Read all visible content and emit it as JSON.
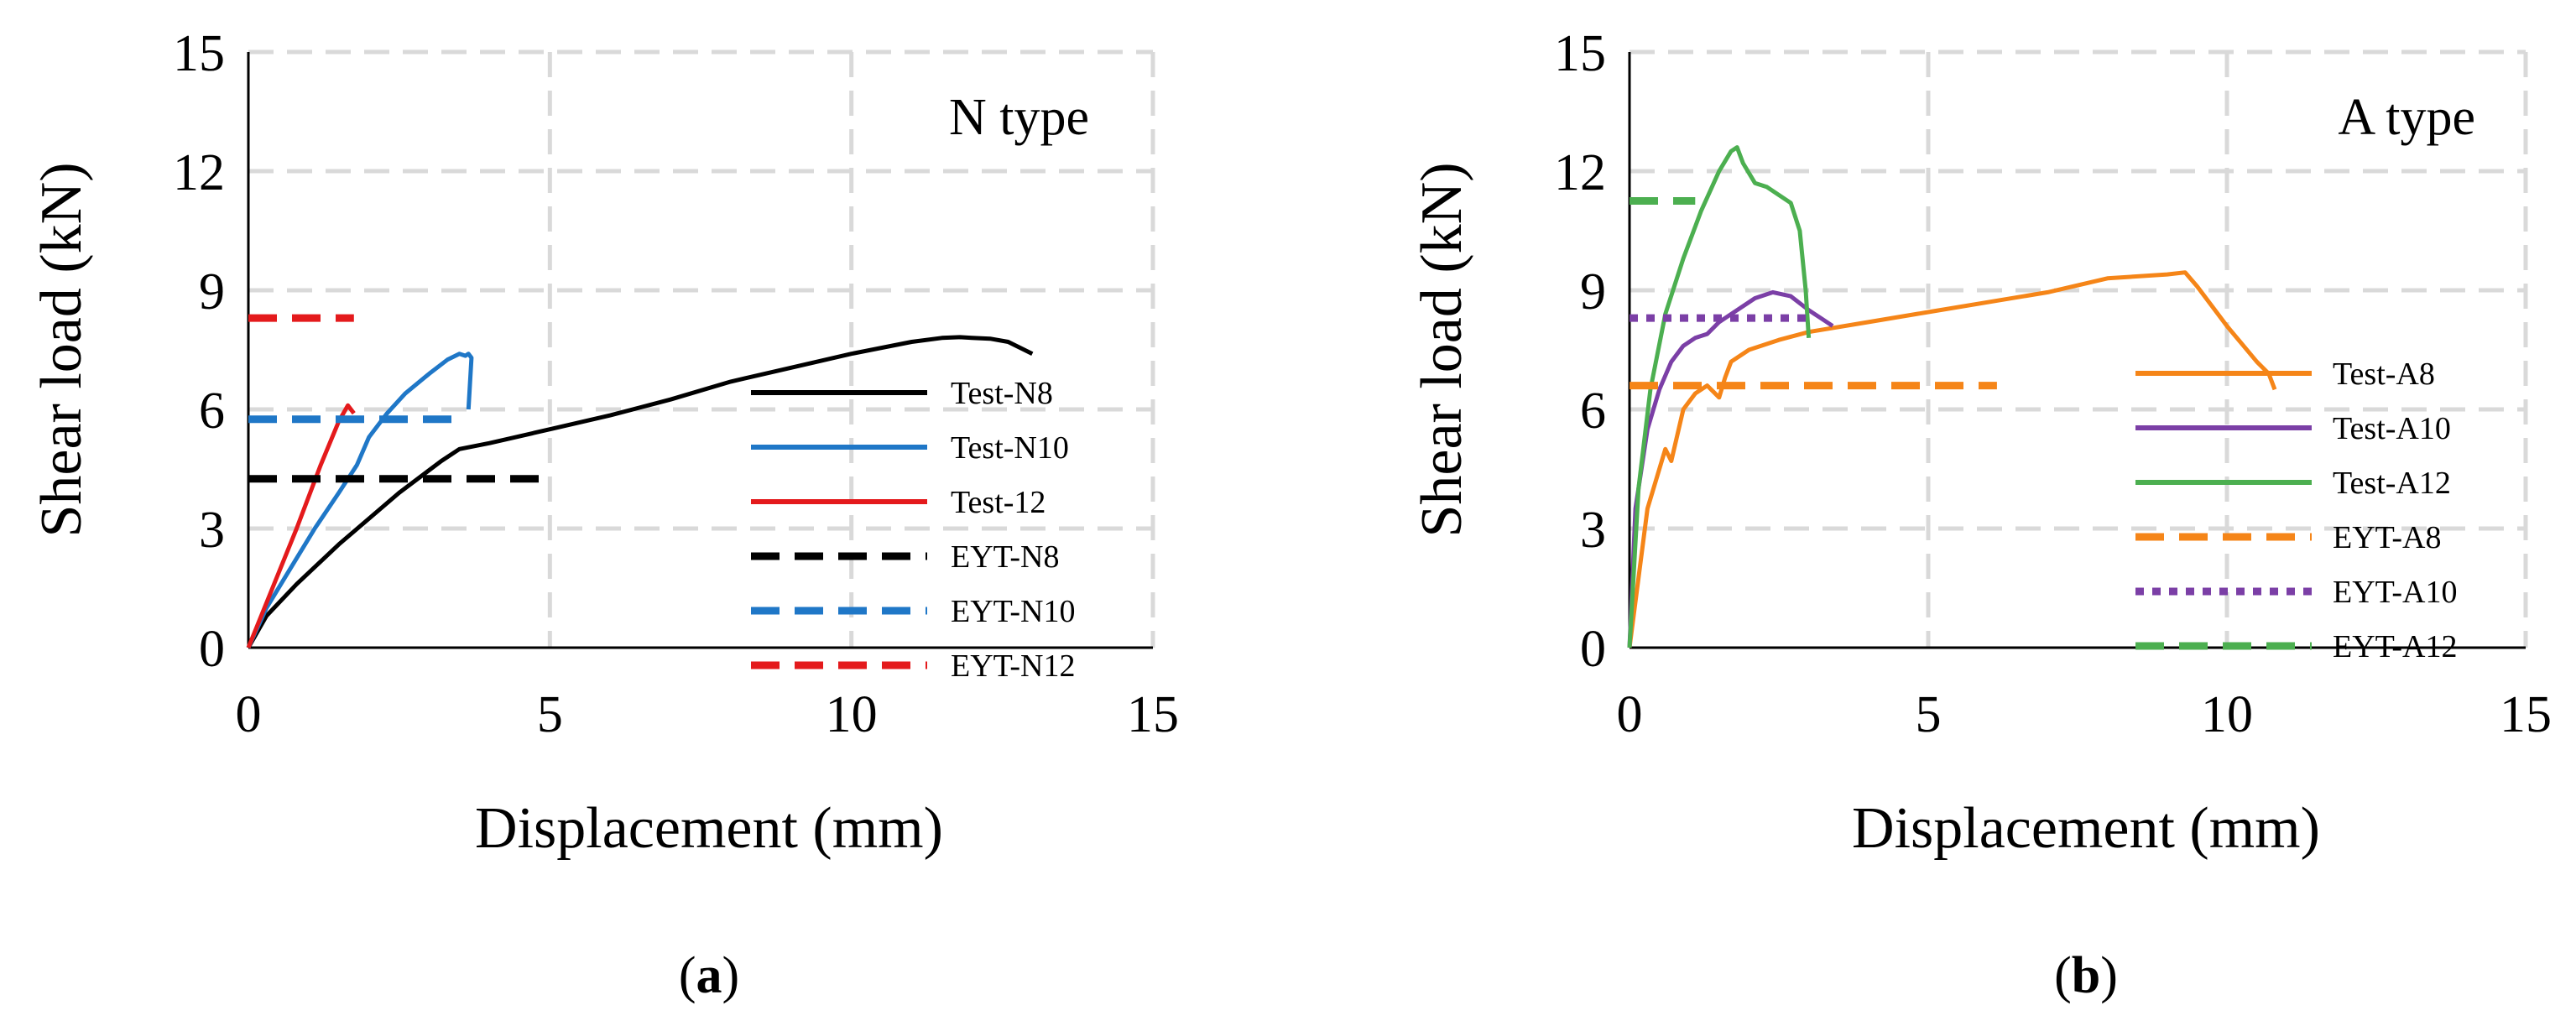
{
  "chart_data": [
    {
      "type": "line",
      "panel": "(a)",
      "caption_letter": "a",
      "title": "N type",
      "xlabel": "Displacement (mm)",
      "ylabel": "Shear load (kN)",
      "xlim": [
        0,
        15
      ],
      "ylim": [
        0,
        15
      ],
      "xticks": [
        0,
        5,
        10,
        15
      ],
      "yticks": [
        0,
        3,
        6,
        9,
        12,
        15
      ],
      "xtick_labels": [
        "0",
        "5",
        "10",
        "15"
      ],
      "ytick_labels": [
        "0",
        "3",
        "6",
        "9",
        "12",
        "15"
      ],
      "grid": true,
      "legend_position": "lower-right",
      "series": [
        {
          "name": "Test-N8",
          "color": "#000000",
          "style": "solid",
          "x": [
            0,
            0.3,
            0.8,
            1.5,
            2.5,
            3.2,
            3.5,
            4.0,
            5.0,
            6.0,
            7.0,
            8.0,
            9.0,
            10.0,
            11.0,
            11.5,
            11.8,
            12.0,
            12.3,
            12.6,
            12.8,
            13.0
          ],
          "y": [
            0,
            0.8,
            1.6,
            2.6,
            3.9,
            4.7,
            5.0,
            5.15,
            5.5,
            5.85,
            6.25,
            6.7,
            7.05,
            7.4,
            7.7,
            7.8,
            7.82,
            7.8,
            7.78,
            7.7,
            7.55,
            7.4
          ]
        },
        {
          "name": "Test-N10",
          "color": "#1F77C7",
          "style": "solid",
          "x": [
            0,
            0.3,
            0.7,
            1.1,
            1.5,
            1.8,
            2.0,
            2.3,
            2.6,
            3.0,
            3.3,
            3.5,
            3.6,
            3.65,
            3.7,
            3.65
          ],
          "y": [
            0,
            1.0,
            2.0,
            3.0,
            3.9,
            4.6,
            5.3,
            5.9,
            6.4,
            6.9,
            7.25,
            7.4,
            7.35,
            7.4,
            7.3,
            6.0
          ]
        },
        {
          "name": "Test-12",
          "color": "#E41A1C",
          "style": "solid",
          "x": [
            0,
            0.4,
            0.8,
            1.2,
            1.5,
            1.65,
            1.75
          ],
          "y": [
            0,
            1.5,
            3.0,
            4.6,
            5.7,
            6.1,
            5.9
          ]
        },
        {
          "name": "EYT-N8",
          "color": "#000000",
          "style": "dashed",
          "x": [
            0,
            4.85
          ],
          "y": [
            4.25,
            4.25
          ]
        },
        {
          "name": "EYT-N10",
          "color": "#1F77C7",
          "style": "dashed",
          "x": [
            0,
            3.6
          ],
          "y": [
            5.75,
            5.75
          ]
        },
        {
          "name": "EYT-N12",
          "color": "#E41A1C",
          "style": "dashed",
          "x": [
            0,
            1.75
          ],
          "y": [
            8.3,
            8.3
          ]
        }
      ]
    },
    {
      "type": "line",
      "panel": "(b)",
      "caption_letter": "b",
      "title": "A type",
      "xlabel": "Displacement (mm)",
      "ylabel": "Shear load (kN)",
      "xlim": [
        0,
        15
      ],
      "ylim": [
        0,
        15
      ],
      "xticks": [
        0,
        5,
        10,
        15
      ],
      "yticks": [
        0,
        3,
        6,
        9,
        12,
        15
      ],
      "xtick_labels": [
        "0",
        "5",
        "10",
        "15"
      ],
      "ytick_labels": [
        "0",
        "3",
        "6",
        "9",
        "12",
        "15"
      ],
      "grid": true,
      "legend_position": "right",
      "series": [
        {
          "name": "Test-A8",
          "color": "#F58518",
          "style": "solid",
          "x": [
            0,
            0.3,
            0.5,
            0.6,
            0.7,
            0.9,
            1.1,
            1.3,
            1.5,
            1.6,
            1.7,
            2.0,
            2.5,
            3.0,
            4.0,
            5.0,
            6.0,
            7.0,
            8.0,
            9.0,
            9.3,
            9.5,
            10.0,
            10.5,
            10.7,
            10.8
          ],
          "y": [
            0,
            3.5,
            4.5,
            5.0,
            4.7,
            6.0,
            6.4,
            6.6,
            6.3,
            6.8,
            7.2,
            7.5,
            7.75,
            7.95,
            8.2,
            8.45,
            8.7,
            8.95,
            9.3,
            9.4,
            9.45,
            9.1,
            8.1,
            7.2,
            6.9,
            6.5
          ]
        },
        {
          "name": "Test-A10",
          "color": "#7B3FA6",
          "style": "solid",
          "x": [
            0,
            0.1,
            0.3,
            0.5,
            0.7,
            0.9,
            1.1,
            1.3,
            1.5,
            1.8,
            2.1,
            2.4,
            2.7,
            3.0,
            3.2,
            3.4
          ],
          "y": [
            0,
            3.5,
            5.5,
            6.5,
            7.2,
            7.6,
            7.8,
            7.9,
            8.2,
            8.5,
            8.8,
            8.95,
            8.85,
            8.5,
            8.3,
            8.1
          ]
        },
        {
          "name": "Test-A12",
          "color": "#4CAF50",
          "style": "solid",
          "x": [
            0,
            0.15,
            0.35,
            0.6,
            0.9,
            1.2,
            1.5,
            1.7,
            1.8,
            1.9,
            2.1,
            2.3,
            2.5,
            2.7,
            2.85,
            2.95,
            3.0
          ],
          "y": [
            0,
            4.0,
            6.5,
            8.4,
            9.8,
            11.0,
            12.0,
            12.5,
            12.6,
            12.2,
            11.7,
            11.6,
            11.4,
            11.2,
            10.5,
            9.0,
            7.8
          ]
        },
        {
          "name": "EYT-A8",
          "color": "#F58518",
          "style": "dashed",
          "x": [
            0,
            6.15
          ],
          "y": [
            6.6,
            6.6
          ]
        },
        {
          "name": "EYT-A10",
          "color": "#7B3FA6",
          "style": "dotted",
          "x": [
            0,
            3.0
          ],
          "y": [
            8.3,
            8.3
          ]
        },
        {
          "name": "EYT-A12",
          "color": "#4CAF50",
          "style": "dashed",
          "x": [
            0,
            1.1
          ],
          "y": [
            11.25,
            11.25
          ]
        }
      ]
    }
  ]
}
